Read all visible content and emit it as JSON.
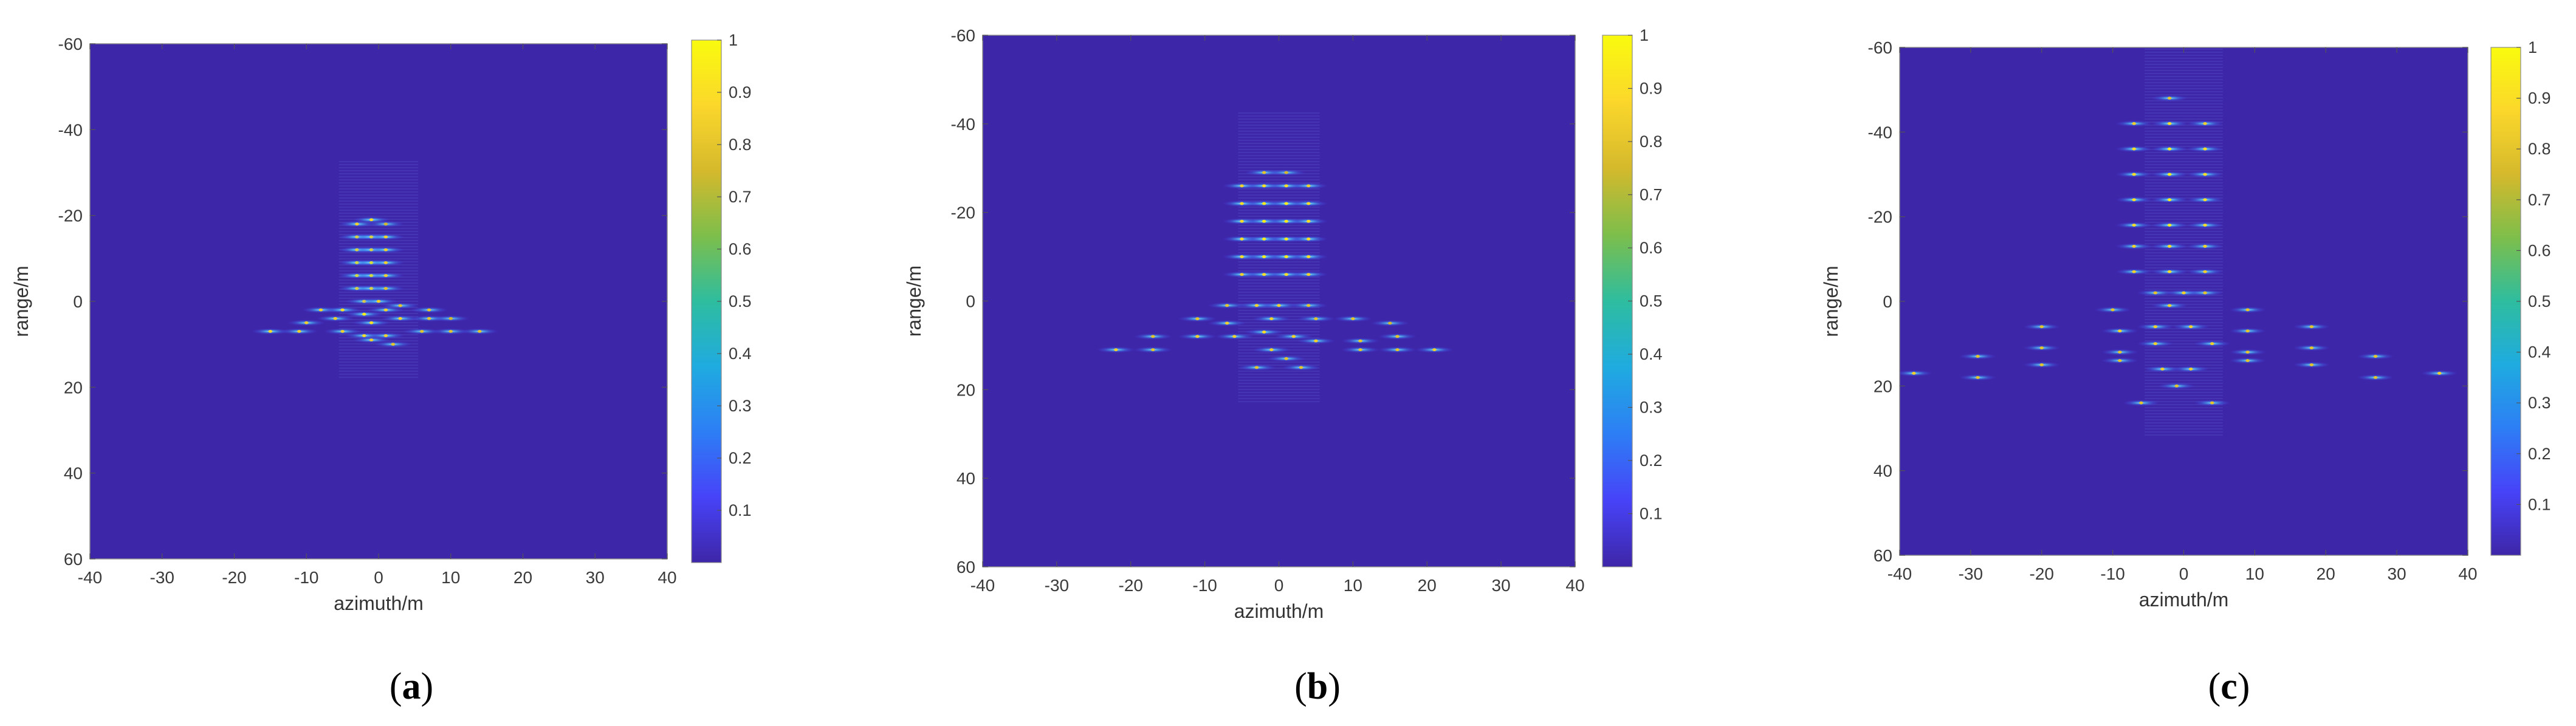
{
  "colors": {
    "background_low": "#3e26a8",
    "colormap": [
      "#3e26a8",
      "#4743f8",
      "#2d7ef5",
      "#1fabe0",
      "#2ebd9f",
      "#7dbe4b",
      "#d5b92c",
      "#fbd72b",
      "#f9fb0e"
    ],
    "axis_box": "#8c8c8c"
  },
  "chart_data": [
    {
      "type": "heatmap",
      "panel_label": "a",
      "xlabel": "azimuth/m",
      "ylabel": "range/m",
      "xlim": [
        -40,
        40
      ],
      "ylim": [
        -60,
        60
      ],
      "y_reversed": true,
      "xticks": [
        -40,
        -30,
        -20,
        -10,
        0,
        10,
        20,
        30,
        40
      ],
      "yticks": [
        -60,
        -40,
        -20,
        0,
        20,
        40,
        60
      ],
      "colorbar": {
        "min": 0,
        "max": 1,
        "ticks": [
          0.1,
          0.2,
          0.3,
          0.4,
          0.5,
          0.6,
          0.7,
          0.8,
          0.9,
          1
        ]
      },
      "points": [
        {
          "x": -3,
          "y": -18,
          "v": 0.5
        },
        {
          "x": -1,
          "y": -19,
          "v": 0.55
        },
        {
          "x": 1,
          "y": -18,
          "v": 0.4
        },
        {
          "x": -3,
          "y": -15,
          "v": 0.6
        },
        {
          "x": -1,
          "y": -15,
          "v": 0.6
        },
        {
          "x": 1,
          "y": -15,
          "v": 0.5
        },
        {
          "x": -3,
          "y": -12,
          "v": 0.6
        },
        {
          "x": -1,
          "y": -12,
          "v": 0.6
        },
        {
          "x": 1,
          "y": -12,
          "v": 0.5
        },
        {
          "x": -3,
          "y": -9,
          "v": 0.65
        },
        {
          "x": -1,
          "y": -9,
          "v": 0.65
        },
        {
          "x": 1,
          "y": -9,
          "v": 0.5
        },
        {
          "x": -3,
          "y": -6,
          "v": 0.65
        },
        {
          "x": -1,
          "y": -6,
          "v": 0.65
        },
        {
          "x": 1,
          "y": -6,
          "v": 0.5
        },
        {
          "x": -3,
          "y": -3,
          "v": 0.6
        },
        {
          "x": -1,
          "y": -3,
          "v": 0.6
        },
        {
          "x": 1,
          "y": -3,
          "v": 0.45
        },
        {
          "x": -2,
          "y": 0,
          "v": 0.55
        },
        {
          "x": 0,
          "y": 0,
          "v": 0.5
        },
        {
          "x": -8,
          "y": 2,
          "v": 0.5
        },
        {
          "x": -5,
          "y": 2,
          "v": 0.55
        },
        {
          "x": -2,
          "y": 3,
          "v": 0.6
        },
        {
          "x": 1,
          "y": 2,
          "v": 0.5
        },
        {
          "x": 3,
          "y": 1,
          "v": 0.45
        },
        {
          "x": 7,
          "y": 2,
          "v": 0.45
        },
        {
          "x": -10,
          "y": 5,
          "v": 0.5
        },
        {
          "x": -6,
          "y": 4,
          "v": 0.5
        },
        {
          "x": -1,
          "y": 5,
          "v": 0.55
        },
        {
          "x": 3,
          "y": 4,
          "v": 0.5
        },
        {
          "x": 7,
          "y": 4,
          "v": 0.45
        },
        {
          "x": 10,
          "y": 4,
          "v": 0.4
        },
        {
          "x": -15,
          "y": 7,
          "v": 0.55
        },
        {
          "x": -11,
          "y": 7,
          "v": 0.5
        },
        {
          "x": -5,
          "y": 7,
          "v": 0.5
        },
        {
          "x": -2,
          "y": 8,
          "v": 0.55
        },
        {
          "x": 1,
          "y": 8,
          "v": 0.5
        },
        {
          "x": 6,
          "y": 7,
          "v": 0.45
        },
        {
          "x": 10,
          "y": 7,
          "v": 0.45
        },
        {
          "x": 14,
          "y": 7,
          "v": 0.45
        },
        {
          "x": -1,
          "y": 9,
          "v": 0.5
        },
        {
          "x": 2,
          "y": 10,
          "v": 0.45
        }
      ]
    },
    {
      "type": "heatmap",
      "panel_label": "b",
      "xlabel": "azimuth/m",
      "ylabel": "range/m",
      "xlim": [
        -40,
        40
      ],
      "ylim": [
        -60,
        60
      ],
      "y_reversed": true,
      "xticks": [
        -40,
        -30,
        -20,
        -10,
        0,
        10,
        20,
        30,
        40
      ],
      "yticks": [
        -60,
        -40,
        -20,
        0,
        20,
        40,
        60
      ],
      "colorbar": {
        "min": 0,
        "max": 1,
        "ticks": [
          0.1,
          0.2,
          0.3,
          0.4,
          0.5,
          0.6,
          0.7,
          0.8,
          0.9,
          1
        ]
      },
      "points": [
        {
          "x": -2,
          "y": -29,
          "v": 0.45
        },
        {
          "x": 1,
          "y": -29,
          "v": 0.4
        },
        {
          "x": -5,
          "y": -26,
          "v": 0.5
        },
        {
          "x": -2,
          "y": -26,
          "v": 0.55
        },
        {
          "x": 1,
          "y": -26,
          "v": 0.55
        },
        {
          "x": 4,
          "y": -26,
          "v": 0.5
        },
        {
          "x": -5,
          "y": -22,
          "v": 0.55
        },
        {
          "x": -2,
          "y": -22,
          "v": 0.6
        },
        {
          "x": 1,
          "y": -22,
          "v": 0.6
        },
        {
          "x": 4,
          "y": -22,
          "v": 0.55
        },
        {
          "x": -5,
          "y": -18,
          "v": 0.55
        },
        {
          "x": -2,
          "y": -18,
          "v": 0.6
        },
        {
          "x": 1,
          "y": -18,
          "v": 0.6
        },
        {
          "x": 4,
          "y": -18,
          "v": 0.55
        },
        {
          "x": -5,
          "y": -14,
          "v": 0.55
        },
        {
          "x": -2,
          "y": -14,
          "v": 0.6
        },
        {
          "x": 1,
          "y": -14,
          "v": 0.6
        },
        {
          "x": 4,
          "y": -14,
          "v": 0.55
        },
        {
          "x": -5,
          "y": -10,
          "v": 0.55
        },
        {
          "x": -2,
          "y": -10,
          "v": 0.6
        },
        {
          "x": 1,
          "y": -10,
          "v": 0.6
        },
        {
          "x": 4,
          "y": -10,
          "v": 0.55
        },
        {
          "x": -5,
          "y": -6,
          "v": 0.5
        },
        {
          "x": -2,
          "y": -6,
          "v": 0.55
        },
        {
          "x": 1,
          "y": -6,
          "v": 0.55
        },
        {
          "x": 4,
          "y": -6,
          "v": 0.5
        },
        {
          "x": -7,
          "y": 1,
          "v": 0.45
        },
        {
          "x": -3,
          "y": 1,
          "v": 0.5
        },
        {
          "x": 0,
          "y": 1,
          "v": 0.5
        },
        {
          "x": 4,
          "y": 1,
          "v": 0.45
        },
        {
          "x": -11,
          "y": 4,
          "v": 0.45
        },
        {
          "x": -7,
          "y": 5,
          "v": 0.5
        },
        {
          "x": -1,
          "y": 4,
          "v": 0.5
        },
        {
          "x": 5,
          "y": 4,
          "v": 0.45
        },
        {
          "x": 10,
          "y": 4,
          "v": 0.45
        },
        {
          "x": 15,
          "y": 5,
          "v": 0.4
        },
        {
          "x": -17,
          "y": 8,
          "v": 0.45
        },
        {
          "x": -11,
          "y": 8,
          "v": 0.5
        },
        {
          "x": -6,
          "y": 8,
          "v": 0.5
        },
        {
          "x": -2,
          "y": 7,
          "v": 0.55
        },
        {
          "x": 2,
          "y": 8,
          "v": 0.5
        },
        {
          "x": 5,
          "y": 9,
          "v": 0.5
        },
        {
          "x": 11,
          "y": 9,
          "v": 0.45
        },
        {
          "x": 16,
          "y": 8,
          "v": 0.45
        },
        {
          "x": -22,
          "y": 11,
          "v": 0.5
        },
        {
          "x": -17,
          "y": 11,
          "v": 0.45
        },
        {
          "x": -1,
          "y": 11,
          "v": 0.5
        },
        {
          "x": 1,
          "y": 13,
          "v": 0.45
        },
        {
          "x": 11,
          "y": 11,
          "v": 0.45
        },
        {
          "x": 16,
          "y": 11,
          "v": 0.45
        },
        {
          "x": 21,
          "y": 11,
          "v": 0.5
        },
        {
          "x": -3,
          "y": 15,
          "v": 0.45
        },
        {
          "x": 3,
          "y": 15,
          "v": 0.45
        }
      ]
    },
    {
      "type": "heatmap",
      "panel_label": "c",
      "xlabel": "azimuth/m",
      "ylabel": "range/m",
      "xlim": [
        -40,
        40
      ],
      "ylim": [
        -60,
        60
      ],
      "y_reversed": true,
      "xticks": [
        -40,
        -30,
        -20,
        -10,
        0,
        10,
        20,
        30,
        40
      ],
      "yticks": [
        -60,
        -40,
        -20,
        0,
        20,
        40,
        60
      ],
      "colorbar": {
        "min": 0,
        "max": 1,
        "ticks": [
          0.1,
          0.2,
          0.3,
          0.4,
          0.5,
          0.6,
          0.7,
          0.8,
          0.9,
          1
        ]
      },
      "points": [
        {
          "x": -2,
          "y": -48,
          "v": 0.45
        },
        {
          "x": -7,
          "y": -42,
          "v": 0.5
        },
        {
          "x": -2,
          "y": -42,
          "v": 0.55
        },
        {
          "x": 3,
          "y": -42,
          "v": 0.5
        },
        {
          "x": -7,
          "y": -36,
          "v": 0.55
        },
        {
          "x": -2,
          "y": -36,
          "v": 0.6
        },
        {
          "x": 3,
          "y": -36,
          "v": 0.55
        },
        {
          "x": -7,
          "y": -30,
          "v": 0.55
        },
        {
          "x": -2,
          "y": -30,
          "v": 0.6
        },
        {
          "x": 3,
          "y": -30,
          "v": 0.55
        },
        {
          "x": -7,
          "y": -24,
          "v": 0.55
        },
        {
          "x": -2,
          "y": -24,
          "v": 0.6
        },
        {
          "x": 3,
          "y": -24,
          "v": 0.55
        },
        {
          "x": -7,
          "y": -18,
          "v": 0.55
        },
        {
          "x": -2,
          "y": -18,
          "v": 0.6
        },
        {
          "x": 3,
          "y": -18,
          "v": 0.55
        },
        {
          "x": -7,
          "y": -13,
          "v": 0.5
        },
        {
          "x": -2,
          "y": -13,
          "v": 0.55
        },
        {
          "x": 3,
          "y": -13,
          "v": 0.5
        },
        {
          "x": -7,
          "y": -7,
          "v": 0.5
        },
        {
          "x": -2,
          "y": -7,
          "v": 0.55
        },
        {
          "x": 3,
          "y": -7,
          "v": 0.5
        },
        {
          "x": -4,
          "y": -2,
          "v": 0.45
        },
        {
          "x": 0,
          "y": -2,
          "v": 0.5
        },
        {
          "x": 3,
          "y": -2,
          "v": 0.45
        },
        {
          "x": -10,
          "y": 2,
          "v": 0.45
        },
        {
          "x": -2,
          "y": 1,
          "v": 0.5
        },
        {
          "x": 9,
          "y": 2,
          "v": 0.45
        },
        {
          "x": -20,
          "y": 6,
          "v": 0.45
        },
        {
          "x": -9,
          "y": 7,
          "v": 0.5
        },
        {
          "x": -4,
          "y": 6,
          "v": 0.5
        },
        {
          "x": 1,
          "y": 6,
          "v": 0.5
        },
        {
          "x": 9,
          "y": 7,
          "v": 0.45
        },
        {
          "x": 18,
          "y": 6,
          "v": 0.45
        },
        {
          "x": -20,
          "y": 11,
          "v": 0.45
        },
        {
          "x": -9,
          "y": 12,
          "v": 0.45
        },
        {
          "x": -4,
          "y": 10,
          "v": 0.5
        },
        {
          "x": 4,
          "y": 10,
          "v": 0.5
        },
        {
          "x": 9,
          "y": 12,
          "v": 0.45
        },
        {
          "x": 18,
          "y": 11,
          "v": 0.45
        },
        {
          "x": -29,
          "y": 13,
          "v": 0.45
        },
        {
          "x": -20,
          "y": 15,
          "v": 0.45
        },
        {
          "x": -9,
          "y": 14,
          "v": 0.45
        },
        {
          "x": 9,
          "y": 14,
          "v": 0.45
        },
        {
          "x": 18,
          "y": 15,
          "v": 0.45
        },
        {
          "x": 27,
          "y": 13,
          "v": 0.45
        },
        {
          "x": -38,
          "y": 17,
          "v": 0.5
        },
        {
          "x": -29,
          "y": 18,
          "v": 0.45
        },
        {
          "x": -3,
          "y": 16,
          "v": 0.5
        },
        {
          "x": 1,
          "y": 16,
          "v": 0.5
        },
        {
          "x": 27,
          "y": 18,
          "v": 0.45
        },
        {
          "x": 36,
          "y": 17,
          "v": 0.5
        },
        {
          "x": -1,
          "y": 20,
          "v": 0.45
        },
        {
          "x": -6,
          "y": 24,
          "v": 0.45
        },
        {
          "x": 4,
          "y": 24,
          "v": 0.45
        }
      ]
    }
  ]
}
